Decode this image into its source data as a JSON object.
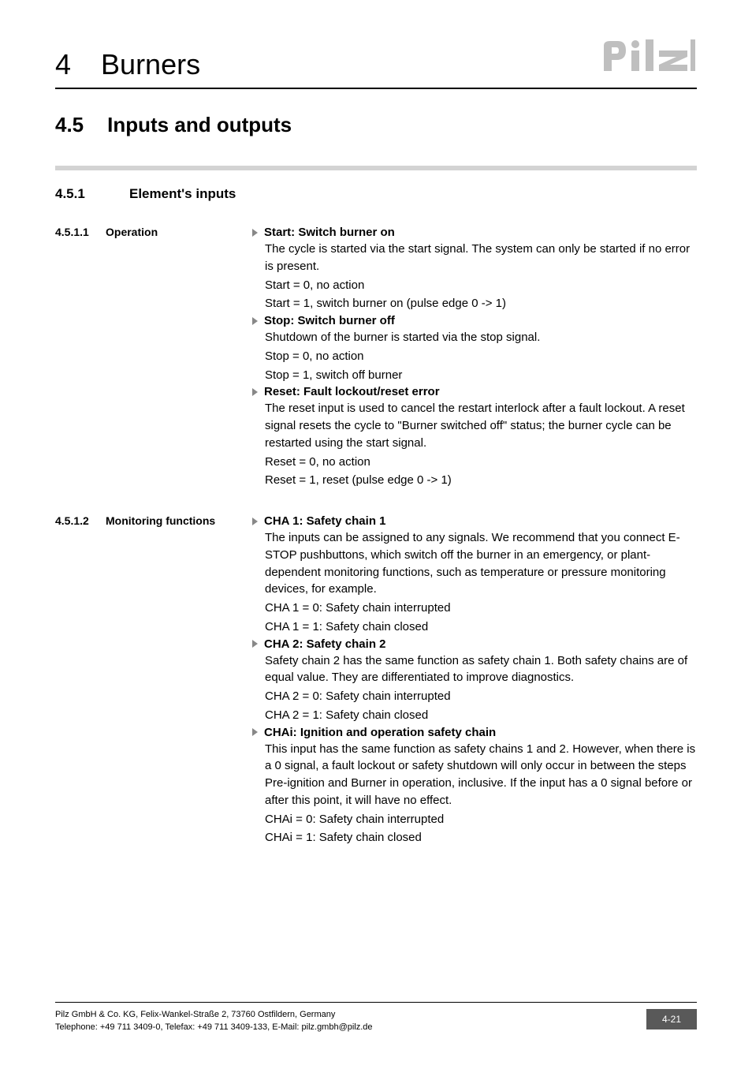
{
  "header": {
    "chapter_num": "4",
    "chapter_title": "Burners",
    "logo_text": "pilz",
    "logo_fill": "#bfbfbf"
  },
  "section": {
    "num": "4.5",
    "title": "Inputs and outputs"
  },
  "subsection": {
    "num": "4.5.1",
    "title": "Element's inputs"
  },
  "blocks": [
    {
      "num": "4.5.1.1",
      "title": "Operation",
      "items": [
        {
          "title": "Start: Switch burner on",
          "lines": [
            "The cycle is started via the start signal. The system can only be started if no error is present.",
            "Start = 0, no action",
            "Start = 1, switch burner on (pulse edge 0 -> 1)"
          ]
        },
        {
          "title": "Stop: Switch burner off",
          "lines": [
            "Shutdown of the burner is started via the stop signal.",
            "Stop = 0, no action",
            "Stop = 1, switch off burner"
          ]
        },
        {
          "title": "Reset: Fault lockout/reset error",
          "lines": [
            "The reset input is used to cancel the restart interlock after a fault lockout. A reset signal resets the cycle to \"Burner switched off\" status; the burner cycle can be restarted using the start signal.",
            "Reset = 0, no action",
            "Reset = 1, reset (pulse edge 0 -> 1)"
          ]
        }
      ]
    },
    {
      "num": "4.5.1.2",
      "title": "Monitoring functions",
      "items": [
        {
          "title": "CHA 1: Safety chain 1",
          "lines": [
            "The inputs can be assigned to any signals. We recommend that you connect E-STOP pushbuttons, which switch off the burner in an emergency, or plant-dependent monitoring functions, such as temperature or pressure monitoring devices, for example.",
            "CHA 1 = 0: Safety chain interrupted",
            "CHA 1 = 1: Safety chain closed"
          ]
        },
        {
          "title": "CHA 2: Safety chain 2",
          "lines": [
            "Safety chain 2 has the same function as safety chain 1. Both safety chains are of equal value. They are differentiated to improve diagnostics.",
            "CHA 2 = 0: Safety chain interrupted",
            "CHA 2 = 1: Safety chain closed"
          ]
        },
        {
          "title": "CHAi: Ignition and operation safety chain",
          "lines": [
            "This input has the same function as safety chains 1 and 2. However, when there is a 0 signal, a fault lockout or safety shutdown will only occur in between the steps Pre-ignition and Burner in operation, inclusive. If the input has a 0 signal before or after this point, it will have no effect.",
            "CHAi = 0: Safety chain interrupted",
            "CHAi = 1: Safety chain closed"
          ]
        }
      ]
    }
  ],
  "footer": {
    "line1": "Pilz GmbH & Co. KG, Felix-Wankel-Straße 2, 73760 Ostfildern, Germany",
    "line2": "Telephone: +49 711 3409-0, Telefax: +49 711 3409-133, E-Mail: pilz.gmbh@pilz.de",
    "page": "4-21"
  },
  "style": {
    "divider_color": "#d3d3d3",
    "triangle_color": "#888888",
    "page_badge_bg": "#595959",
    "body_font_size": 15
  }
}
